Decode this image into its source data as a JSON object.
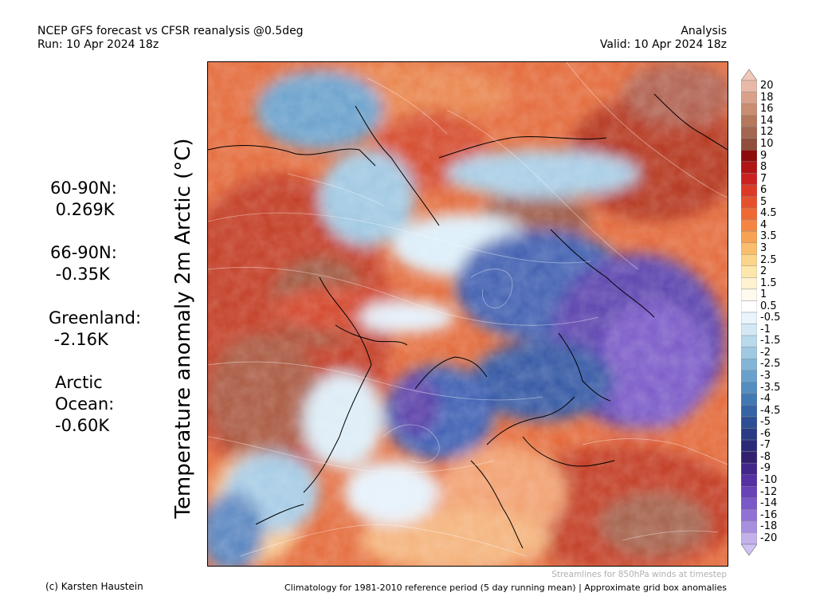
{
  "header": {
    "title_line1": "NCEP GFS forecast vs CFSR reanalysis @0.5deg",
    "title_line2": "Run: 10 Apr 2024 18z",
    "right_line1": "Analysis",
    "right_line2": "Valid: 10 Apr 2024 18z"
  },
  "axis_label": "Temperature anomaly 2m Arctic (°C)",
  "stats": {
    "s1_label": "60-90N:",
    "s1_value": " 0.269K",
    "s2_label": "66-90N:",
    "s2_value": " -0.35K",
    "s3_label": "Greenland:",
    "s3_value": " -2.16K",
    "s4_label": "Arctic\nOcean:",
    "s4_value": "-0.60K"
  },
  "colorbar": {
    "labels": [
      "20",
      "18",
      "16",
      "14",
      "12",
      "10",
      "9",
      "8",
      "7",
      "6",
      "5",
      "4.5",
      "4",
      "3.5",
      "3",
      "2.5",
      "2",
      "1.5",
      "1",
      "0.5",
      "-0.5",
      "-1",
      "-1.5",
      "-2",
      "-2.5",
      "-3",
      "-3.5",
      "-4",
      "-4.5",
      "-5",
      "-6",
      "-7",
      "-8",
      "-9",
      "-10",
      "-12",
      "-14",
      "-16",
      "-18",
      "-20"
    ],
    "colors": [
      "#e8b9a6",
      "#d9a189",
      "#c98d72",
      "#b5785d",
      "#a36650",
      "#8f4f3b",
      "#8e0b0b",
      "#b01414",
      "#cc2121",
      "#dc3a26",
      "#e6512d",
      "#ef6a33",
      "#f48542",
      "#f7a154",
      "#f9bd6c",
      "#fbd58a",
      "#fde6ac",
      "#fef2cf",
      "#fffaee",
      "#ffffff",
      "#eaf4fb",
      "#d3e8f5",
      "#b9d9ec",
      "#9fc8e2",
      "#84b5d7",
      "#6aa1cc",
      "#548dc0",
      "#4279b3",
      "#3563a4",
      "#2c4e95",
      "#2a3b86",
      "#2b2a79",
      "#32206f",
      "#43268a",
      "#5531a3",
      "#6842b7",
      "#7b58c7",
      "#9072d4",
      "#a78fe0",
      "#c3b1ec"
    ]
  },
  "footer": {
    "streamlines": "Streamlines for 850hPa winds at timestep",
    "copyright": "(c) Karsten Haustein",
    "climatology": "Climatology for 1981-2010 reference period (5 day running mean) | Approximate grid box anomalies"
  }
}
